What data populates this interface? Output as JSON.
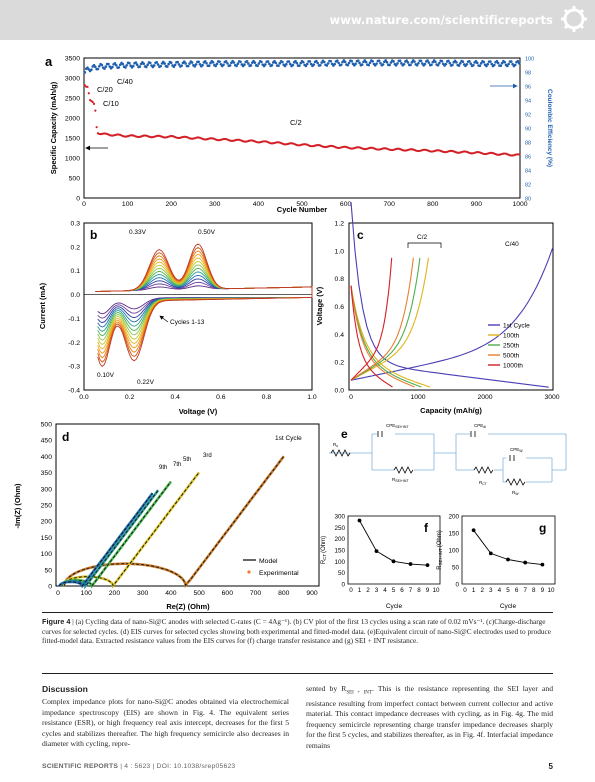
{
  "header": {
    "url": "www.nature.com/scientificreports"
  },
  "panel_a": {
    "label": "a",
    "ylabel": "Specific Capacity (mAh/g)",
    "y2label": "Coulombic Efficiency (%)",
    "xlabel": "Cycle Number",
    "xticks": [
      "0",
      "100",
      "200",
      "300",
      "400",
      "500",
      "600",
      "700",
      "800",
      "900",
      "1000"
    ],
    "yticks": [
      "0",
      "500",
      "1000",
      "1500",
      "2000",
      "2500",
      "3000",
      "3500"
    ],
    "y2ticks": [
      "80",
      "82",
      "84",
      "86",
      "88",
      "90",
      "92",
      "94",
      "96",
      "98",
      "100"
    ],
    "ann_c40": "C/40",
    "ann_c20": "C/20",
    "ann_c10": "C/10",
    "ann_c2": "C/2"
  },
  "panel_b": {
    "label": "b",
    "ylabel": "Current (mA)",
    "xlabel": "Voltage (V)",
    "xticks": [
      "0.0",
      "0.2",
      "0.4",
      "0.6",
      "0.8",
      "1.0"
    ],
    "yticks": [
      "-0.4",
      "-0.3",
      "-0.2",
      "-0.1",
      "0.0",
      "0.1",
      "0.2",
      "0.3"
    ],
    "ann_033": "0.33V",
    "ann_050": "0.50V",
    "ann_010": "0.10V",
    "ann_022": "0.22V",
    "ann_cycles": "Cycles 1-13"
  },
  "panel_c": {
    "label": "c",
    "ylabel": "Voltage (V)",
    "xlabel": "Capacity (mAh/g)",
    "xticks": [
      "0",
      "1000",
      "2000",
      "3000"
    ],
    "yticks": [
      "0.0",
      "0.2",
      "0.4",
      "0.6",
      "0.8",
      "1.0",
      "1.2"
    ],
    "ann_c2": "C/2",
    "ann_c40": "C/40",
    "legend": [
      "1st Cycle",
      "100th",
      "250th",
      "500th",
      "1000th"
    ]
  },
  "panel_d": {
    "label": "d",
    "ylabel": "-Im(Z) (Ohm)",
    "xlabel": "Re(Z) (Ohm)",
    "xticks": [
      "0",
      "100",
      "200",
      "300",
      "400",
      "500",
      "600",
      "700",
      "800",
      "900"
    ],
    "yticks": [
      "0",
      "50",
      "100",
      "150",
      "200",
      "250",
      "300",
      "350",
      "400",
      "450",
      "500"
    ],
    "ann_1st": "1st Cycle",
    "ann_3rd": "3rd",
    "ann_5th": "5th",
    "ann_7th": "7th",
    "ann_9th": "9th",
    "legend_model": "Model",
    "legend_exp": "Experimental"
  },
  "panel_e": {
    "label": "e",
    "rs": "R",
    "rs_sub": "s",
    "cpe1": "CPE",
    "cpe1_sub": "SEI+INT",
    "r1": "R",
    "r1_sub": "SEI+INT",
    "cpe2": "CPE",
    "cpe2_sub": "dl",
    "rct": "R",
    "rct_sub": "CT",
    "cpe3": "CPE",
    "cpe3_sub": "W",
    "rw": "R",
    "rw_sub": "W"
  },
  "panel_f": {
    "label": "f",
    "ylabel": "R",
    "ylabel_sub": "CT",
    "ylabel_unit": "(Ohm)",
    "xlabel": "Cycle",
    "xticks": [
      "0",
      "1",
      "2",
      "3",
      "4",
      "5",
      "6",
      "7",
      "8",
      "9",
      "10"
    ],
    "yticks": [
      "0",
      "50",
      "100",
      "150",
      "200",
      "250",
      "300"
    ]
  },
  "panel_g": {
    "label": "g",
    "ylabel": "R",
    "ylabel_sub": "SEI+INT",
    "ylabel_unit": "(Ohm)",
    "xlabel": "Cycle",
    "xticks": [
      "0",
      "1",
      "2",
      "3",
      "4",
      "5",
      "6",
      "7",
      "8",
      "9",
      "10"
    ],
    "yticks": [
      "0",
      "50",
      "100",
      "150",
      "200"
    ]
  },
  "chart_data": [
    {
      "type": "scatter",
      "panel": "a",
      "xlabel": "Cycle Number",
      "ylabel": "Specific Capacity (mAh/g)",
      "y2label": "Coulombic Efficiency (%)",
      "xlim": [
        0,
        1000
      ],
      "ylim": [
        0,
        3500
      ],
      "y2lim": [
        80,
        100
      ],
      "series": [
        {
          "name": "Specific capacity",
          "color": "#d32027",
          "x": [
            1,
            5,
            10,
            12,
            20,
            25,
            30,
            35,
            40,
            100,
            200,
            300,
            400,
            500,
            600,
            700,
            800,
            900,
            1000
          ],
          "y": [
            2850,
            2800,
            2780,
            2450,
            2380,
            2320,
            1650,
            1620,
            1600,
            1550,
            1530,
            1470,
            1410,
            1330,
            1260,
            1220,
            1180,
            1130,
            1070
          ]
        },
        {
          "name": "Coulombic efficiency",
          "color": "#1f5fad",
          "x": [
            1,
            10,
            20,
            40,
            100,
            200,
            300,
            400,
            500,
            600,
            700,
            800,
            900,
            1000
          ],
          "y": [
            98,
            98.4,
            98.6,
            98.8,
            99,
            99.1,
            99.2,
            99.2,
            99.2,
            99.3,
            99.3,
            99.3,
            99.2,
            99.2
          ]
        }
      ]
    },
    {
      "type": "line",
      "panel": "b",
      "xlabel": "Voltage (V)",
      "ylabel": "Current (mA)",
      "xlim": [
        0,
        1.0
      ],
      "ylim": [
        -0.4,
        0.3
      ],
      "annotations": [
        "0.33V",
        "0.50V",
        "0.10V",
        "0.22V",
        "Cycles 1-13"
      ]
    },
    {
      "type": "line",
      "panel": "c",
      "xlabel": "Capacity (mAh/g)",
      "ylabel": "Voltage (V)",
      "xlim": [
        0,
        3000
      ],
      "ylim": [
        0,
        1.2
      ],
      "series": [
        {
          "name": "1st Cycle",
          "color": "#4a3fb5"
        },
        {
          "name": "100th",
          "color": "#e0b41b"
        },
        {
          "name": "250th",
          "color": "#4caf50"
        },
        {
          "name": "500th",
          "color": "#ed7d31"
        },
        {
          "name": "1000th",
          "color": "#d32027"
        }
      ]
    },
    {
      "type": "line",
      "panel": "d",
      "xlabel": "Re(Z) (Ohm)",
      "ylabel": "-Im(Z) (Ohm)",
      "xlim": [
        0,
        900
      ],
      "ylim": [
        0,
        500
      ],
      "series": [
        {
          "name": "Model"
        },
        {
          "name": "Experimental"
        }
      ]
    },
    {
      "type": "line",
      "panel": "f",
      "xlabel": "Cycle",
      "ylabel": "R CT (Ohm)",
      "xlim": [
        0,
        10
      ],
      "ylim": [
        0,
        300
      ],
      "x": [
        1,
        3,
        5,
        7,
        9
      ],
      "y": [
        280,
        145,
        100,
        88,
        83
      ]
    },
    {
      "type": "line",
      "panel": "g",
      "xlabel": "Cycle",
      "ylabel": "R SEI+INT (Ohm)",
      "xlim": [
        0,
        10
      ],
      "ylim": [
        0,
        200
      ],
      "x": [
        1,
        3,
        5,
        7,
        9
      ],
      "y": [
        158,
        90,
        72,
        63,
        57
      ]
    }
  ],
  "caption": {
    "bold": "Figure 4",
    "text": " | (a) Cycling data of nano-Si@C anodes with selected C-rates (C = 4Ag⁻¹). (b) CV plot of the first 13 cycles using a scan rate of 0.02 mVs⁻¹. (c)Charge-discharge curves for selected cycles. (d) EIS curves for selected cycles showing both experimental and fitted-model data. (e)Equivalent circuit of nano-Si@C electrodes used to produce fitted-model data. Extracted resistance values from the EIS curves for (f) charge transfer resistance and (g) SEI + INT resistance."
  },
  "body": {
    "heading": "Discussion",
    "col1": "Complex impedance plots for nano-Si@C anodes obtained via electrochemical impedance spectroscopy (EIS) are shown in Fig. 4. The equivalent series resistance (ESR), or high frequency real axis intercept, decreases for the first 5 cycles and stabilizes thereafter. The high frequency semicircle also decreases in diameter with cycling, repre-",
    "col2a": "sented by R",
    "col2_sub": "SEI + INT",
    "col2b": ". This is the resistance representing the SEI layer and resistance resulting from imperfect contact between current collector and active material. This contact impedance decreases with cycling, as in Fig. 4g. The mid frequency semicircle representing charge transfer impedance decreases sharply for the first 5 cycles, and stabilizes thereafter, as in Fig. 4f. Interfacial impedance remains"
  },
  "footer": {
    "journal": "SCIENTIFIC REPORTS",
    "citation": " | 4 : 5623 | DOI: 10.1038/srep05623",
    "page": "5"
  }
}
